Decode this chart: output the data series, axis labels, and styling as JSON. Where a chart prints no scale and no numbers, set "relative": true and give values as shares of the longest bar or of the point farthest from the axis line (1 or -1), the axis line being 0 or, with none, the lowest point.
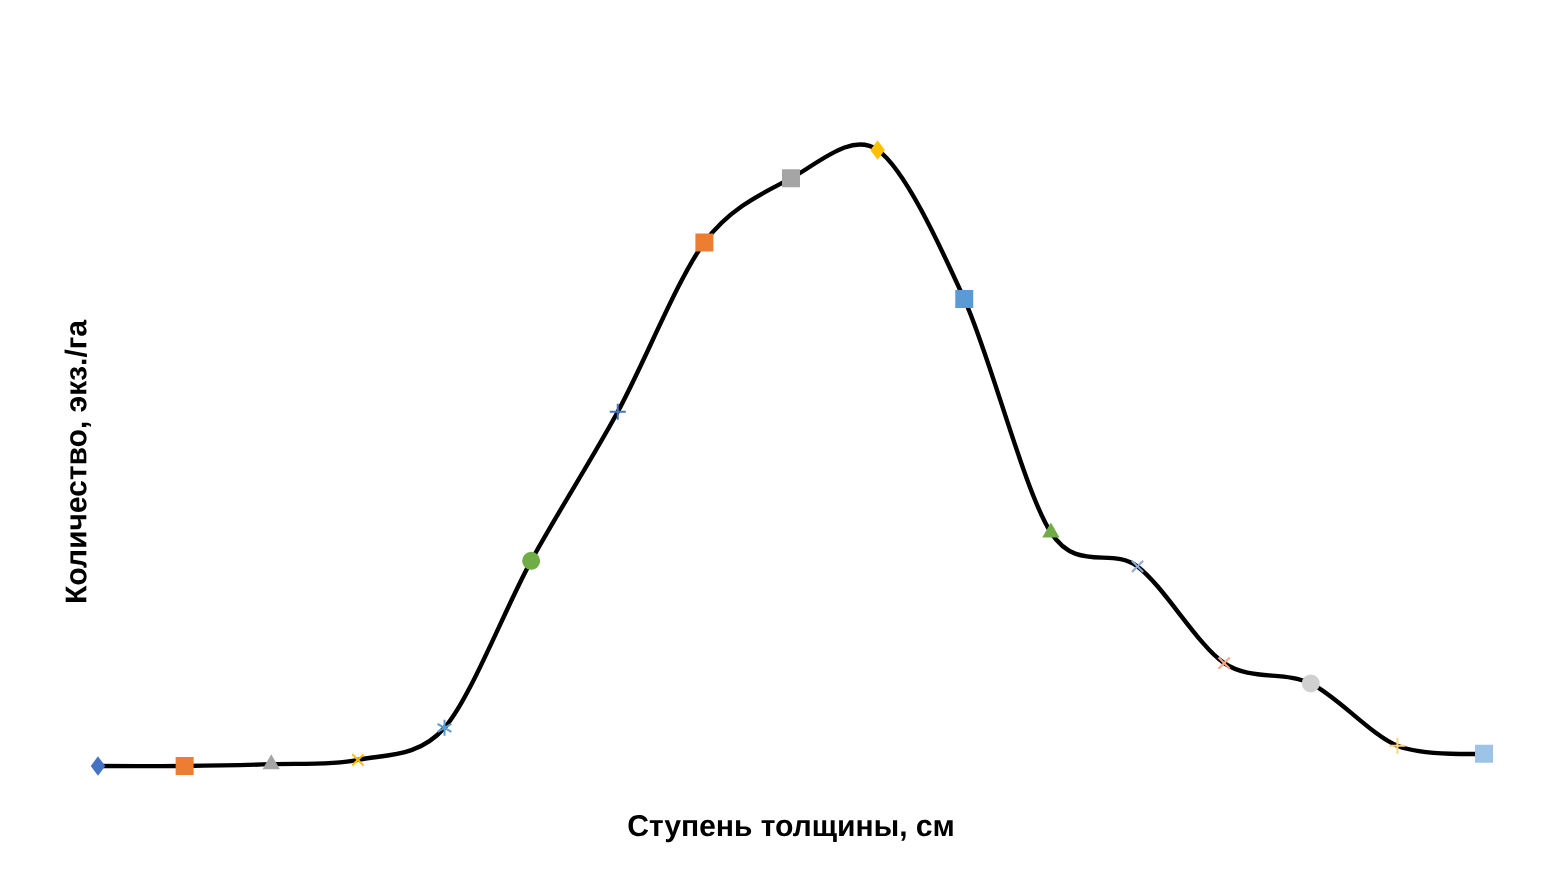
{
  "chart_data": {
    "type": "line",
    "relative": true,
    "xlabel": "Ступень толщины, см",
    "ylabel": "Количество, экз./га",
    "categories": [
      null,
      null,
      null,
      null,
      null,
      null,
      null,
      null,
      null,
      null,
      null,
      null,
      null,
      null,
      null,
      null,
      null
    ],
    "series": [
      {
        "color": "#000000",
        "values": [
          0,
          0,
          0.003,
          0.01,
          0.062,
          0.333,
          0.575,
          0.85,
          0.954,
          1,
          0.758,
          0.379,
          0.324,
          0.167,
          0.134,
          0.033,
          0.02
        ],
        "colors": [
          "#4472c4",
          "#ed7d31",
          "#a5a5a5",
          "#ffc000",
          "#5b9bd5",
          "#70ad47",
          "#4472c4",
          "#ed7d31",
          "#a5a5a5",
          "#ffc000",
          "#5b9bd5",
          "#70ad47",
          "#8fa8d8",
          "#f4a98a",
          "#d0d0d0",
          "#ffd47f",
          "#9dc3e6"
        ],
        "marker": [
          "diamond",
          "square",
          "triangle",
          "cross",
          "star",
          "circle",
          "plus",
          "dash",
          "dash",
          "diamond",
          "square",
          "triangle",
          "cross",
          "cross",
          "circle",
          "plus",
          "dash"
        ]
      }
    ],
    "line_style": "solid"
  }
}
